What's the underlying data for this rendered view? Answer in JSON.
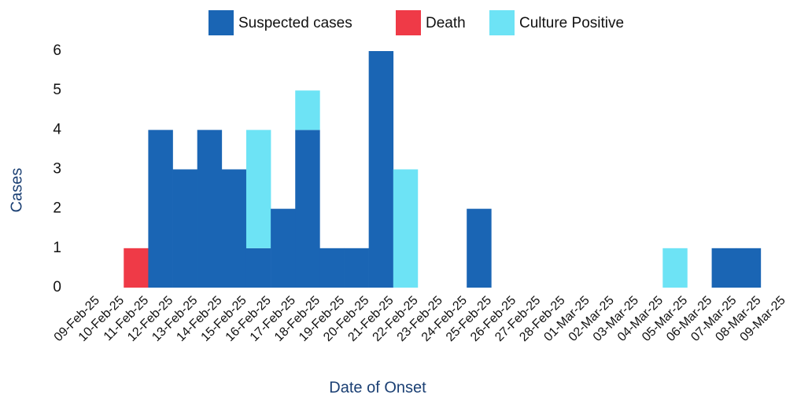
{
  "chart_data": {
    "type": "stacked-bar",
    "x_label": "Date of Onset",
    "y_label": "Cases",
    "categories": [
      "09-Feb-25",
      "10-Feb-25",
      "11-Feb-25",
      "12-Feb-25",
      "13-Feb-25",
      "14-Feb-25",
      "15-Feb-25",
      "16-Feb-25",
      "17-Feb-25",
      "18-Feb-25",
      "19-Feb-25",
      "20-Feb-25",
      "21-Feb-25",
      "22-Feb-25",
      "23-Feb-25",
      "24-Feb-25",
      "25-Feb-25",
      "26-Feb-25",
      "27-Feb-25",
      "28-Feb-25",
      "01-Mar-25",
      "02-Mar-25",
      "03-Mar-25",
      "04-Mar-25",
      "05-Mar-25",
      "06-Mar-25",
      "07-Mar-25",
      "08-Mar-25",
      "09-Mar-25"
    ],
    "series": [
      {
        "name": "Suspected cases",
        "color": "#1a65b4",
        "values": [
          0,
          0,
          0,
          4,
          3,
          4,
          3,
          1,
          2,
          4,
          1,
          1,
          6,
          0,
          0,
          0,
          2,
          0,
          0,
          0,
          0,
          0,
          0,
          0,
          0,
          0,
          1,
          1,
          0
        ]
      },
      {
        "name": "Death",
        "color": "#ef3a47",
        "values": [
          0,
          0,
          1,
          0,
          0,
          0,
          0,
          0,
          0,
          0,
          0,
          0,
          0,
          0,
          0,
          0,
          0,
          0,
          0,
          0,
          0,
          0,
          0,
          0,
          0,
          0,
          0,
          0,
          0
        ]
      },
      {
        "name": "Culture Positive",
        "color": "#6de3f5",
        "values": [
          0,
          0,
          0,
          0,
          0,
          0,
          0,
          3,
          0,
          1,
          0,
          0,
          0,
          3,
          0,
          0,
          0,
          0,
          0,
          0,
          0,
          0,
          0,
          0,
          1,
          0,
          0,
          0,
          0
        ]
      }
    ],
    "ylim": [
      0,
      6
    ],
    "yticks": [
      0,
      1,
      2,
      3,
      4,
      5,
      6
    ],
    "grid": false,
    "legend": "top"
  }
}
